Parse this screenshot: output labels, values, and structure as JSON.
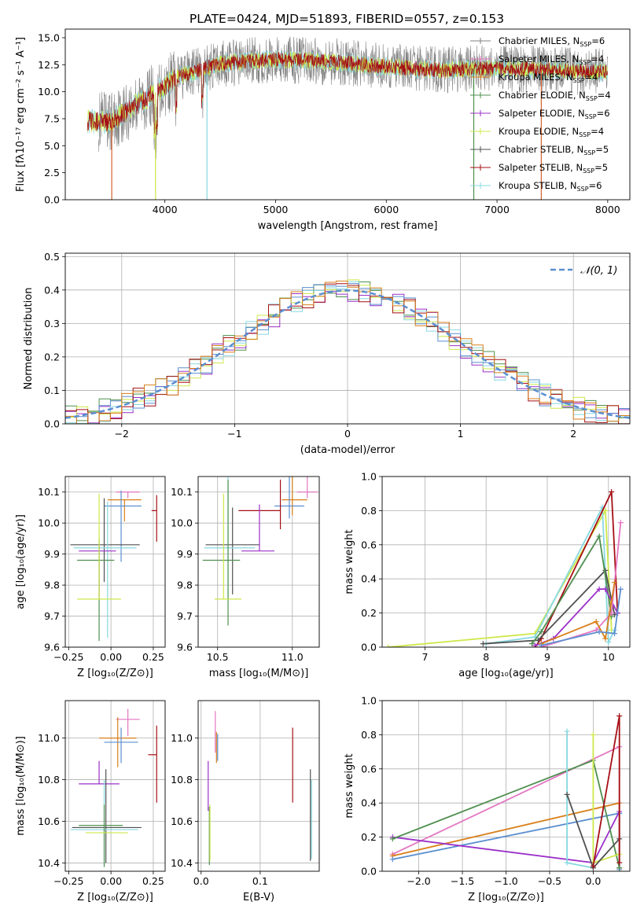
{
  "figure": {
    "title": "PLATE=0424, MJD=51893, FIBERID=0557, z=0.153"
  },
  "legend_entries": [
    {
      "label": "Chabrier MILES, N",
      "sub": "SSP",
      "suffix": "=6",
      "color": "#808080"
    },
    {
      "label": "Salpeter MILES, N",
      "sub": "SSP",
      "suffix": "=4",
      "color": "#e377c2"
    },
    {
      "label": "Kroupa MILES, N",
      "sub": "SSP",
      "suffix": "=4",
      "color": "#d97f1a"
    },
    {
      "label": "Chabrier ELODIE, N",
      "sub": "SSP",
      "suffix": "=4",
      "color": "#4f8f4f"
    },
    {
      "label": "Salpeter ELODIE, N",
      "sub": "SSP",
      "suffix": "=6",
      "color": "#9b30c8"
    },
    {
      "label": "Kroupa ELODIE, N",
      "sub": "SSP",
      "suffix": "=4",
      "color": "#cde84a"
    },
    {
      "label": "Chabrier STELIB, N",
      "sub": "SSP",
      "suffix": "=5",
      "color": "#505050"
    },
    {
      "label": "Salpeter STELIB, N",
      "sub": "SSP",
      "suffix": "=5",
      "color": "#a50f15"
    },
    {
      "label": "Kroupa STELIB, N",
      "sub": "SSP",
      "suffix": "=6",
      "color": "#87d8e0"
    }
  ],
  "chart_data": [
    {
      "id": "spectrum",
      "type": "line",
      "xlabel": "wavelength [Angstrom, rest frame]",
      "ylabel": "Flux [fλ10⁻¹⁷ erg cm⁻² s⁻¹ A⁻¹]",
      "xlim": [
        3100,
        8200
      ],
      "ylim": [
        0,
        15.8
      ],
      "xticks": [
        4000,
        5000,
        6000,
        7000,
        8000
      ],
      "yticks": [
        0.0,
        2.5,
        5.0,
        7.5,
        10.0,
        12.5,
        15.0
      ],
      "ytick_labels": [
        "0.0",
        "2.5",
        "5.0",
        "7.5",
        "10.0",
        "12.5",
        "15.0"
      ],
      "continuum": {
        "x": [
          3300,
          3500,
          3700,
          4000,
          4100,
          4500,
          5000,
          5500,
          6000,
          6500,
          7000,
          7500,
          8000
        ],
        "y": [
          7.3,
          7.2,
          8.5,
          10.5,
          11.3,
          12.6,
          13.0,
          12.8,
          12.3,
          12.0,
          12.2,
          12.0,
          11.8
        ]
      },
      "series": [
        {
          "name": "Chabrier MILES, NSSP=6"
        },
        {
          "name": "Kroupa STELIB, NSSP=6"
        },
        {
          "name": "Kroupa ELODIE, NSSP=4"
        },
        {
          "name": "Salpeter STELIB, NSSP=5"
        }
      ]
    },
    {
      "id": "residuals",
      "type": "histogram",
      "xlabel": "(data-model)/error",
      "ylabel": "Normed distribution",
      "xlim": [
        -2.5,
        2.5
      ],
      "ylim": [
        0,
        0.51
      ],
      "xticks": [
        -2,
        -1,
        0,
        1,
        2
      ],
      "xtick_labels": [
        "−2",
        "−1",
        "0",
        "1",
        "2"
      ],
      "yticks": [
        0.0,
        0.1,
        0.2,
        0.3,
        0.4,
        0.5
      ],
      "ytick_labels": [
        "0.0",
        "0.1",
        "0.2",
        "0.3",
        "0.4",
        "0.5"
      ],
      "bin_width": 0.1,
      "series": [
        {
          "name": "𝒩(0, 1)",
          "style": "dashed",
          "color": "#5b8fd0"
        }
      ]
    },
    {
      "id": "age_vs_Z",
      "type": "errorbar",
      "xlabel": "Z [log₁₀(Z/Z⊙)]",
      "ylabel": "age  [log₁₀(age/yr)]",
      "xlim": [
        -0.27,
        0.32
      ],
      "ylim": [
        9.6,
        10.15
      ],
      "xticks": [
        -0.25,
        0.0,
        0.25
      ],
      "xtick_labels": [
        "−0.25",
        "0.00",
        "0.25"
      ],
      "yticks": [
        9.6,
        9.7,
        9.8,
        9.9,
        10.0,
        10.1
      ],
      "ytick_labels": [
        "9.6",
        "9.7",
        "9.8",
        "9.9",
        "10.0",
        "10.1"
      ],
      "points": [
        {
          "x": 0.1,
          "y": 10.1,
          "xerr": [
            0.07,
            0.07
          ],
          "yerr": [
            0.02,
            0.0
          ],
          "color": "#e377c2"
        },
        {
          "x": 0.08,
          "y": 10.075,
          "xerr": [
            0.1,
            0.1
          ],
          "yerr": [
            0.07,
            0.0
          ],
          "color": "#d97f1a"
        },
        {
          "x": 0.06,
          "y": 10.055,
          "xerr": [
            0.1,
            0.12
          ],
          "yerr": [
            0.18,
            0.05
          ],
          "color": "#5b8fd0"
        },
        {
          "x": 0.27,
          "y": 10.04,
          "xerr": [
            0.03,
            0.0
          ],
          "yerr": [
            0.1,
            0.05
          ],
          "color": "#a50f15"
        },
        {
          "x": -0.04,
          "y": 9.93,
          "xerr": [
            0.2,
            0.21
          ],
          "yerr": [
            0.12,
            0.15
          ],
          "color": "#505050"
        },
        {
          "x": -0.02,
          "y": 9.92,
          "xerr": [
            0.2,
            0.17
          ],
          "yerr": [
            0.29,
            0.15
          ],
          "color": "#87d8e0"
        },
        {
          "x": -0.07,
          "y": 9.91,
          "xerr": [
            0.12,
            0.1
          ],
          "yerr": [
            0.15,
            0.02
          ],
          "color": "#9b30c8"
        },
        {
          "x": -0.07,
          "y": 9.88,
          "xerr": [
            0.13,
            0.09
          ],
          "yerr": [
            0.26,
            0.07
          ],
          "color": "#4f8f4f"
        },
        {
          "x": -0.07,
          "y": 9.755,
          "xerr": [
            0.13,
            0.13
          ],
          "yerr": [
            0.0,
            0.34
          ],
          "color": "#cde84a"
        }
      ]
    },
    {
      "id": "age_vs_mass",
      "type": "errorbar",
      "xlabel": "mass [log₁₀(M/M⊙)]",
      "xlim": [
        10.37,
        11.18
      ],
      "ylim": [
        9.6,
        10.15
      ],
      "xticks": [
        10.5,
        11.0
      ],
      "xtick_labels": [
        "10.5",
        "11.0"
      ],
      "yticks": [
        9.6,
        9.7,
        9.8,
        9.9,
        10.0,
        10.1
      ],
      "ytick_labels": [
        "9.6",
        "9.7",
        "9.8",
        "9.9",
        "10.0",
        "10.1"
      ],
      "points": [
        {
          "x": 11.1,
          "y": 10.1,
          "xerr": [
            0.07,
            0.07
          ],
          "yerr": [
            0.02,
            0.13
          ],
          "color": "#e377c2"
        },
        {
          "x": 11.0,
          "y": 10.075,
          "xerr": [
            0.07,
            0.1
          ],
          "yerr": [
            0.05,
            0.21
          ],
          "color": "#d97f1a"
        },
        {
          "x": 10.98,
          "y": 10.055,
          "xerr": [
            0.1,
            0.1
          ],
          "yerr": [
            0.04,
            0.16
          ],
          "color": "#5b8fd0"
        },
        {
          "x": 10.92,
          "y": 10.04,
          "xerr": [
            0.28,
            0.0
          ],
          "yerr": [
            0.06,
            0.1
          ],
          "color": "#a50f15"
        },
        {
          "x": 10.6,
          "y": 9.93,
          "xerr": [
            0.18,
            0.18
          ],
          "yerr": [
            0.16,
            0.12
          ],
          "color": "#505050"
        },
        {
          "x": 10.57,
          "y": 9.92,
          "xerr": [
            0.16,
            0.18
          ],
          "yerr": [
            0.17,
            0.29
          ],
          "color": "#87d8e0"
        },
        {
          "x": 10.78,
          "y": 9.91,
          "xerr": [
            0.12,
            0.1
          ],
          "yerr": [
            0.0,
            0.15
          ],
          "color": "#9b30c8"
        },
        {
          "x": 10.57,
          "y": 9.88,
          "xerr": [
            0.17,
            0.08
          ],
          "yerr": [
            0.21,
            0.26
          ],
          "color": "#4f8f4f"
        },
        {
          "x": 10.54,
          "y": 9.755,
          "xerr": [
            0.06,
            0.12
          ],
          "yerr": [
            0.0,
            0.34
          ],
          "color": "#cde84a"
        }
      ]
    },
    {
      "id": "weight_vs_age",
      "type": "line",
      "xlabel": "age  [log₁₀(age/yr)]",
      "ylabel": "mass weight",
      "xlim": [
        6.3,
        10.35
      ],
      "ylim": [
        0,
        1.0
      ],
      "xticks": [
        7,
        8,
        9,
        10
      ],
      "yticks": [
        0.0,
        0.2,
        0.4,
        0.6,
        0.8,
        1.0
      ],
      "ytick_labels": [
        "0.0",
        "0.2",
        "0.4",
        "0.6",
        "0.8",
        "1.0"
      ],
      "series": [
        {
          "color": "#cde84a",
          "x": [
            6.4,
            8.8,
            9.95,
            10.05
          ],
          "y": [
            0.0,
            0.08,
            0.8,
            0.1
          ]
        },
        {
          "color": "#87d8e0",
          "x": [
            8.0,
            8.8,
            9.9,
            10.0,
            10.1
          ],
          "y": [
            0.02,
            0.06,
            0.82,
            0.03,
            0.1
          ]
        },
        {
          "color": "#a50f15",
          "x": [
            8.8,
            8.9,
            10.05,
            10.15
          ],
          "y": [
            0.0,
            0.05,
            0.91,
            0.2
          ]
        },
        {
          "color": "#505050",
          "x": [
            7.95,
            8.85,
            9.95,
            10.1
          ],
          "y": [
            0.02,
            0.04,
            0.45,
            0.19
          ]
        },
        {
          "color": "#4f8f4f",
          "x": [
            8.75,
            8.9,
            9.85,
            10.05
          ],
          "y": [
            0.02,
            0.09,
            0.65,
            0.18
          ]
        },
        {
          "color": "#9b30c8",
          "x": [
            8.8,
            9.1,
            9.85,
            9.95,
            10.15
          ],
          "y": [
            0.01,
            0.05,
            0.34,
            0.34,
            0.2
          ]
        },
        {
          "color": "#e377c2",
          "x": [
            8.9,
            9.8,
            10.05,
            10.2
          ],
          "y": [
            0.0,
            0.1,
            0.2,
            0.73
          ]
        },
        {
          "color": "#d97f1a",
          "x": [
            8.9,
            9.8,
            9.95,
            10.1
          ],
          "y": [
            0.02,
            0.15,
            0.05,
            0.38
          ]
        },
        {
          "color": "#5b8fd0",
          "x": [
            8.9,
            9.85,
            10.1,
            10.2
          ],
          "y": [
            0.01,
            0.09,
            0.08,
            0.34
          ]
        }
      ]
    },
    {
      "id": "mass_vs_Z",
      "type": "errorbar",
      "xlabel": "Z [log₁₀(Z/Z⊙)]",
      "ylabel": "mass [log₁₀(M/M⊙)]",
      "xlim": [
        -0.27,
        0.32
      ],
      "ylim": [
        10.36,
        11.18
      ],
      "xticks": [
        -0.25,
        0.0,
        0.25
      ],
      "xtick_labels": [
        "−0.25",
        "0.00",
        "0.25"
      ],
      "yticks": [
        10.4,
        10.6,
        10.8,
        11.0
      ],
      "ytick_labels": [
        "10.4",
        "10.6",
        "10.8",
        "11.0"
      ],
      "points": [
        {
          "x": 0.1,
          "y": 11.09,
          "xerr": [
            0.07,
            0.07
          ],
          "yerr": [
            0.08,
            0.05
          ],
          "color": "#e377c2"
        },
        {
          "x": 0.04,
          "y": 11.0,
          "xerr": [
            0.11,
            0.11
          ],
          "yerr": [
            0.14,
            0.1
          ],
          "color": "#d97f1a"
        },
        {
          "x": 0.06,
          "y": 10.98,
          "xerr": [
            0.1,
            0.1
          ],
          "yerr": [
            0.1,
            0.07
          ],
          "color": "#5b8fd0"
        },
        {
          "x": 0.27,
          "y": 10.92,
          "xerr": [
            0.05,
            0.0
          ],
          "yerr": [
            0.23,
            0.14
          ],
          "color": "#a50f15"
        },
        {
          "x": -0.07,
          "y": 10.78,
          "xerr": [
            0.12,
            0.12
          ],
          "yerr": [
            0.0,
            0.11
          ],
          "color": "#9b30c8"
        },
        {
          "x": -0.03,
          "y": 10.57,
          "xerr": [
            0.2,
            0.21
          ],
          "yerr": [
            0.17,
            0.28
          ],
          "color": "#505050"
        },
        {
          "x": -0.04,
          "y": 10.56,
          "xerr": [
            0.2,
            0.2
          ],
          "yerr": [
            0.17,
            0.24
          ],
          "color": "#87d8e0"
        },
        {
          "x": -0.04,
          "y": 10.58,
          "xerr": [
            0.15,
            0.11
          ],
          "yerr": [
            0.2,
            0.1
          ],
          "color": "#4f8f4f"
        },
        {
          "x": -0.02,
          "y": 10.545,
          "xerr": [
            0.13,
            0.12
          ],
          "yerr": [
            0.0,
            0.0
          ],
          "color": "#cde84a"
        }
      ]
    },
    {
      "id": "mass_vs_ebv",
      "type": "errorbar",
      "xlabel": "E(B-V)",
      "xlim": [
        -0.005,
        0.2
      ],
      "ylim": [
        10.36,
        11.18
      ],
      "xticks": [
        0.0,
        0.1
      ],
      "xtick_labels": [
        "0.0",
        "0.1"
      ],
      "yticks": [
        10.4,
        10.6,
        10.8,
        11.0
      ],
      "ytick_labels": [
        "10.4",
        "10.6",
        "10.8",
        "11.0"
      ],
      "points": [
        {
          "x": 0.024,
          "y": 11.03,
          "yerr": [
            0.1,
            0.1
          ],
          "color": "#e377c2"
        },
        {
          "x": 0.026,
          "y": 10.98,
          "yerr": [
            0.1,
            0.05
          ],
          "color": "#d97f1a"
        },
        {
          "x": 0.028,
          "y": 10.97,
          "yerr": [
            0.08,
            0.05
          ],
          "color": "#5b8fd0"
        },
        {
          "x": 0.155,
          "y": 10.87,
          "yerr": [
            0.18,
            0.18
          ],
          "color": "#a50f15"
        },
        {
          "x": 0.012,
          "y": 10.78,
          "yerr": [
            0.13,
            0.11
          ],
          "color": "#9b30c8"
        },
        {
          "x": 0.185,
          "y": 10.63,
          "yerr": [
            0.22,
            0.22
          ],
          "color": "#505050"
        },
        {
          "x": 0.187,
          "y": 10.61,
          "yerr": [
            0.19,
            0.19
          ],
          "color": "#87d8e0"
        },
        {
          "x": 0.014,
          "y": 10.53,
          "yerr": [
            0.14,
            0.14
          ],
          "color": "#4f8f4f"
        },
        {
          "x": 0.015,
          "y": 10.55,
          "yerr": [
            0.14,
            0.13
          ],
          "color": "#cde84a"
        }
      ]
    },
    {
      "id": "weight_vs_Z",
      "type": "line",
      "xlabel": "Z [log₁₀(Z/Z⊙)]",
      "ylabel": "mass weight",
      "xlim": [
        -2.42,
        0.42
      ],
      "ylim": [
        0,
        1.0
      ],
      "xticks": [
        -2.0,
        -1.5,
        -1.0,
        -0.5,
        0.0
      ],
      "xtick_labels": [
        "−2.0",
        "−1.5",
        "−1.0",
        "−0.5",
        "0.0"
      ],
      "yticks": [
        0.0,
        0.2,
        0.4,
        0.6,
        0.8,
        1.0
      ],
      "ytick_labels": [
        "0.0",
        "0.2",
        "0.4",
        "0.6",
        "0.8",
        "1.0"
      ],
      "series": [
        {
          "color": "#e377c2",
          "x": [
            -2.3,
            0.3,
            0.3
          ],
          "y": [
            0.1,
            0.73,
            0.02
          ]
        },
        {
          "color": "#d97f1a",
          "x": [
            -2.3,
            0.3,
            0.3
          ],
          "y": [
            0.09,
            0.4,
            0.02
          ]
        },
        {
          "color": "#5b8fd0",
          "x": [
            -2.3,
            0.3,
            0.3
          ],
          "y": [
            0.07,
            0.34,
            0.01
          ]
        },
        {
          "color": "#9b30c8",
          "x": [
            -2.3,
            0.0,
            0.3
          ],
          "y": [
            0.2,
            0.05,
            0.35
          ]
        },
        {
          "color": "#4f8f4f",
          "x": [
            -2.3,
            0.0,
            0.3
          ],
          "y": [
            0.19,
            0.65,
            0.02
          ]
        },
        {
          "color": "#cde84a",
          "x": [
            0.0,
            0.0,
            0.3
          ],
          "y": [
            0.8,
            0.05,
            0.1
          ]
        },
        {
          "color": "#87d8e0",
          "x": [
            -0.3,
            -0.3,
            0.0
          ],
          "y": [
            0.82,
            0.05,
            0.02
          ]
        },
        {
          "color": "#505050",
          "x": [
            -0.3,
            0.0,
            0.3
          ],
          "y": [
            0.45,
            0.02,
            0.19
          ]
        },
        {
          "color": "#a50f15",
          "x": [
            0.0,
            0.3,
            0.3
          ],
          "y": [
            0.03,
            0.91,
            0.05
          ]
        }
      ]
    }
  ]
}
